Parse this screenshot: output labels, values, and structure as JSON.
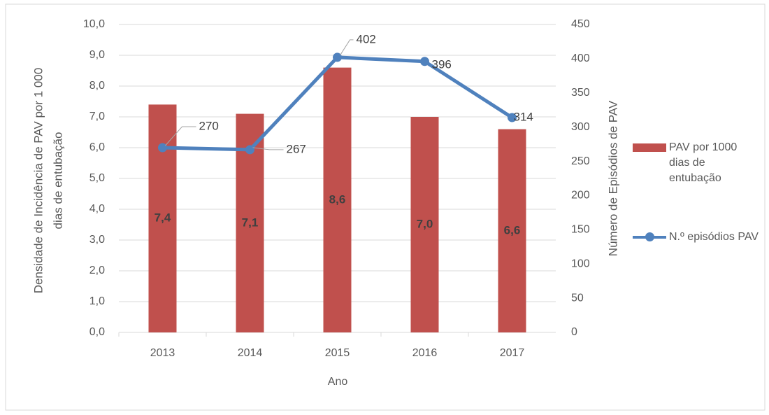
{
  "chart_data": {
    "type": "bar",
    "categories": [
      "2013",
      "2014",
      "2015",
      "2016",
      "2017"
    ],
    "xlabel": "Ano",
    "ylabel": [
      "Densidade de Incidência de PAV por 1 000",
      "dias de entubação"
    ],
    "y2label": "Número de Episódios de PAV",
    "ylim": [
      0,
      10
    ],
    "yticks": [
      {
        "value": 0,
        "label": "0,0"
      },
      {
        "value": 1,
        "label": "1,0"
      },
      {
        "value": 2,
        "label": "2,0"
      },
      {
        "value": 3,
        "label": "3,0"
      },
      {
        "value": 4,
        "label": "4,0"
      },
      {
        "value": 5,
        "label": "5,0"
      },
      {
        "value": 6,
        "label": "6,0"
      },
      {
        "value": 7,
        "label": "7,0"
      },
      {
        "value": 8,
        "label": "8,0"
      },
      {
        "value": 9,
        "label": "9,0"
      },
      {
        "value": 10,
        "label": "10,0"
      }
    ],
    "y2lim": [
      0,
      450
    ],
    "y2ticks": [
      0,
      50,
      100,
      150,
      200,
      250,
      300,
      350,
      400,
      450
    ],
    "grid": true,
    "legend": "right",
    "series": [
      {
        "name": "PAV por 1000 dias de entubação",
        "type": "bar",
        "color": "#c0504d",
        "values": [
          7.4,
          7.1,
          8.6,
          7.0,
          6.6
        ],
        "value_labels": [
          "7,4",
          "7,1",
          "8,6",
          "7,0",
          "6,6"
        ]
      },
      {
        "name": "N.º episódios PAV",
        "type": "line",
        "axis": "y2",
        "color": "#4f81bd",
        "values": [
          270,
          267,
          402,
          396,
          314
        ]
      }
    ]
  }
}
